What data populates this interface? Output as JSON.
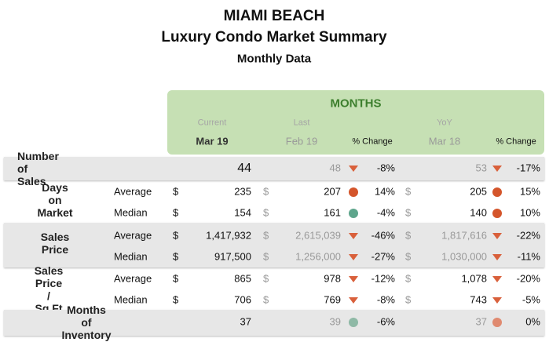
{
  "header": {
    "title": "MIAMI BEACH",
    "subtitle": "Luxury Condo Market Summary",
    "period": "Monthly Data"
  },
  "months_header": {
    "label": "MONTHS",
    "current": "Current",
    "last": "Last",
    "yoy": "YoY",
    "current_month": "Mar 19",
    "last_month": "Feb 19",
    "last_change": "% Change",
    "yoy_month": "Mar 18",
    "yoy_change": "% Change"
  },
  "groups": [
    {
      "label": "Number of Sales",
      "rows": [
        {
          "current": "44",
          "last": "48",
          "last_icon": "triangle",
          "last_color": "#d9603b",
          "last_change": "-8%",
          "yoy": "53",
          "yoy_icon": "triangle",
          "yoy_color": "#d9603b",
          "yoy_change": "-17%"
        }
      ]
    },
    {
      "label": "Days on Market",
      "rows": [
        {
          "measure": "Average",
          "cur_unit": "$",
          "current": "235",
          "last_unit": "$",
          "last": "207",
          "last_icon": "circle",
          "last_color": "#d4552b",
          "last_change": "14%",
          "yoy_unit": "$",
          "yoy": "205",
          "yoy_icon": "circle",
          "yoy_color": "#d4552b",
          "yoy_change": "15%"
        },
        {
          "measure": "Median",
          "cur_unit": "$",
          "current": "154",
          "last_unit": "$",
          "last": "161",
          "last_icon": "circle",
          "last_color": "#5ea58c",
          "last_change": "-4%",
          "yoy_unit": "$",
          "yoy": "140",
          "yoy_icon": "circle",
          "yoy_color": "#d4552b",
          "yoy_change": "10%"
        }
      ]
    },
    {
      "label": "Sales Price",
      "rows": [
        {
          "measure": "Average",
          "cur_unit": "$",
          "current": "1,417,932",
          "last_unit": "$",
          "last": "2,615,039",
          "last_icon": "triangle",
          "last_color": "#d9603b",
          "last_change": "-46%",
          "yoy_unit": "$",
          "yoy": "1,817,616",
          "yoy_icon": "triangle",
          "yoy_color": "#d9603b",
          "yoy_change": "-22%"
        },
        {
          "measure": "Median",
          "cur_unit": "$",
          "current": "917,500",
          "last_unit": "$",
          "last": "1,256,000",
          "last_icon": "triangle",
          "last_color": "#d9603b",
          "last_change": "-27%",
          "yoy_unit": "$",
          "yoy": "1,030,000",
          "yoy_icon": "triangle",
          "yoy_color": "#d9603b",
          "yoy_change": "-11%"
        }
      ]
    },
    {
      "label": "Sales Price /\nSq Ft",
      "rows": [
        {
          "measure": "Average",
          "cur_unit": "$",
          "current": "865",
          "last_unit": "$",
          "last": "978",
          "last_icon": "triangle",
          "last_color": "#d9603b",
          "last_change": "-12%",
          "yoy_unit": "$",
          "yoy": "1,078",
          "yoy_icon": "triangle",
          "yoy_color": "#d9603b",
          "yoy_change": "-20%"
        },
        {
          "measure": "Median",
          "cur_unit": "$",
          "current": "706",
          "last_unit": "$",
          "last": "769",
          "last_icon": "triangle",
          "last_color": "#d9603b",
          "last_change": "-8%",
          "yoy_unit": "$",
          "yoy": "743",
          "yoy_icon": "triangle",
          "yoy_color": "#d9603b",
          "yoy_change": "-5%"
        }
      ]
    },
    {
      "label": "Months of Inventory",
      "rows": [
        {
          "current": "37",
          "last": "39",
          "last_icon": "circle",
          "last_color": "#8fb9a6",
          "last_change": "-6%",
          "yoy": "37",
          "yoy_icon": "circle",
          "yoy_color": "#e08a70",
          "yoy_change": "0%"
        }
      ]
    }
  ]
}
